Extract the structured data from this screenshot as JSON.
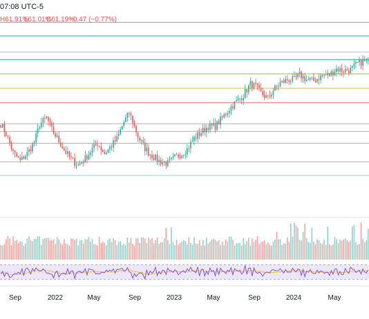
{
  "header": {
    "time_label": "07:08 UTC-5",
    "high": "H61.91%",
    "low": "L61.01%",
    "close": "C61.19%",
    "change": "−0.47 (−0.77%)"
  },
  "colors": {
    "up": "#26a69a",
    "down": "#ef5350",
    "vol_up": "#8fd1c8",
    "vol_down": "#f5a3a1",
    "rsi_line": "#7e57c2",
    "rsi_ma": "#f5c242",
    "rsi_band": "#ece7f7",
    "grid": "#f0f3fa"
  },
  "xaxis": {
    "labels": [
      "Sep",
      "2022",
      "May",
      "Sep",
      "2023",
      "May",
      "Sep",
      "2024",
      "May"
    ]
  },
  "chart_data": {
    "type": "candlestick",
    "y_unit": "%",
    "ylim": [
      38,
      62.5
    ],
    "levels": [
      {
        "value": 61.0,
        "color": "#9e9e9e"
      },
      {
        "value": 59.4,
        "color": "#26a69a"
      },
      {
        "value": 57.5,
        "color": "#c0c0c0"
      },
      {
        "value": 56.6,
        "color": "#26a69a"
      },
      {
        "value": 54.9,
        "color": "#8bc34a"
      },
      {
        "value": 53.2,
        "color": "#f2b233"
      },
      {
        "value": 51.5,
        "color": "#e57373"
      },
      {
        "value": 49.0,
        "color": "#b0b0b0"
      },
      {
        "value": 48.1,
        "color": "#b0b0b0"
      },
      {
        "value": 46.7,
        "color": "#b0b0b0"
      },
      {
        "value": 44.5,
        "color": "#b0b0b0"
      },
      {
        "value": 42.9,
        "color": "#90caf9"
      }
    ],
    "close_anchors": [
      [
        0,
        49.0
      ],
      [
        3,
        47.8
      ],
      [
        7,
        45.6
      ],
      [
        11,
        44.6
      ],
      [
        15,
        45.5
      ],
      [
        19,
        46.8
      ],
      [
        22,
        48.9
      ],
      [
        26,
        49.7
      ],
      [
        29,
        48.3
      ],
      [
        32,
        47.3
      ],
      [
        36,
        45.9
      ],
      [
        40,
        44.8
      ],
      [
        44,
        44.1
      ],
      [
        48,
        44.9
      ],
      [
        52,
        46.0
      ],
      [
        55,
        46.7
      ],
      [
        59,
        45.5
      ],
      [
        62,
        46.2
      ],
      [
        66,
        47.2
      ],
      [
        70,
        49.2
      ],
      [
        73,
        50.3
      ],
      [
        75,
        49.3
      ],
      [
        78,
        47.5
      ],
      [
        82,
        46.1
      ],
      [
        86,
        45.2
      ],
      [
        90,
        44.6
      ],
      [
        95,
        44.3
      ],
      [
        99,
        45.0
      ],
      [
        103,
        45.5
      ],
      [
        106,
        46.0
      ],
      [
        110,
        47.3
      ],
      [
        114,
        48.0
      ],
      [
        118,
        48.7
      ],
      [
        122,
        48.7
      ],
      [
        126,
        49.7
      ],
      [
        130,
        50.8
      ],
      [
        134,
        51.6
      ],
      [
        138,
        52.4
      ],
      [
        142,
        53.7
      ],
      [
        145,
        53.4
      ],
      [
        148,
        52.6
      ],
      [
        152,
        52.0
      ],
      [
        155,
        53.0
      ],
      [
        159,
        53.8
      ],
      [
        163,
        54.2
      ],
      [
        167,
        54.2
      ],
      [
        170,
        54.8
      ],
      [
        174,
        54.2
      ],
      [
        178,
        54.1
      ],
      [
        183,
        54.7
      ],
      [
        187,
        54.8
      ],
      [
        191,
        55.5
      ],
      [
        195,
        55.3
      ],
      [
        199,
        55.4
      ],
      [
        203,
        56.1
      ],
      [
        206,
        56.4
      ],
      [
        209,
        56.2
      ]
    ],
    "rsi": {
      "ylim": [
        20,
        80
      ],
      "band": [
        30,
        70
      ]
    }
  }
}
